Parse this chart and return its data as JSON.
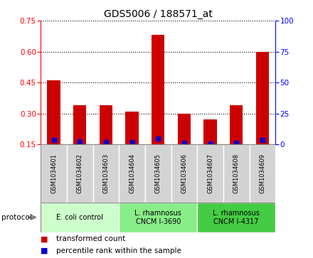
{
  "title": "GDS5006 / 188571_at",
  "samples": [
    "GSM1034601",
    "GSM1034602",
    "GSM1034603",
    "GSM1034604",
    "GSM1034605",
    "GSM1034606",
    "GSM1034607",
    "GSM1034608",
    "GSM1034609"
  ],
  "transformed_count": [
    0.46,
    0.34,
    0.34,
    0.31,
    0.68,
    0.3,
    0.27,
    0.34,
    0.6
  ],
  "percentile_rank": [
    3.5,
    2.5,
    2.0,
    1.8,
    5.0,
    1.2,
    1.0,
    1.5,
    3.8
  ],
  "ylim_left": [
    0.15,
    0.75
  ],
  "ylim_right": [
    0,
    100
  ],
  "yticks_left": [
    0.15,
    0.3,
    0.45,
    0.6,
    0.75
  ],
  "yticks_right": [
    0,
    25,
    50,
    75,
    100
  ],
  "bar_color": "#cc0000",
  "dot_color": "#0000cc",
  "group_colors": [
    "#ccffcc",
    "#88ee88",
    "#44cc44"
  ],
  "group_labels": [
    "E. coli control",
    "L. rhamnosus\nCNCM I-3690",
    "L. rhamnosus\nCNCM I-4317"
  ],
  "group_ranges": [
    [
      0,
      3
    ],
    [
      3,
      6
    ],
    [
      6,
      9
    ]
  ],
  "legend_bar_label": "transformed count",
  "legend_dot_label": "percentile rank within the sample",
  "grid_color": "#000000"
}
